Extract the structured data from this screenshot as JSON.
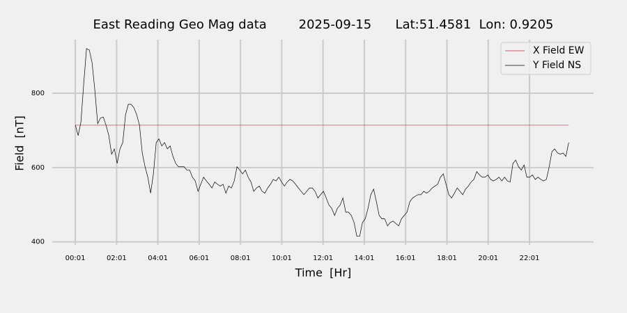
{
  "chart_data": {
    "type": "line",
    "title": "East Reading Geo Mag data        2025-09-15      Lat:51.4581  Lon: 0.9205",
    "xlabel": "Time  [Hr]",
    "ylabel": "Field  [nT]",
    "xlim": [
      -1.1,
      25.12
    ],
    "ylim": [
      392,
      944
    ],
    "xticks": [
      {
        "value": 0.0167,
        "label": "00:01"
      },
      {
        "value": 2.0167,
        "label": "02:01"
      },
      {
        "value": 4.0167,
        "label": "04:01"
      },
      {
        "value": 6.0167,
        "label": "06:01"
      },
      {
        "value": 8.0167,
        "label": "08:01"
      },
      {
        "value": 10.0167,
        "label": "10:01"
      },
      {
        "value": 12.0167,
        "label": "12:01"
      },
      {
        "value": 14.0167,
        "label": "14:01"
      },
      {
        "value": 16.0167,
        "label": "16:01"
      },
      {
        "value": 18.0167,
        "label": "18:01"
      },
      {
        "value": 20.0167,
        "label": "20:01"
      },
      {
        "value": 22.0167,
        "label": "22:01"
      }
    ],
    "yticks": [
      400,
      600,
      800
    ],
    "grid": true,
    "legend": "upper right",
    "series": [
      {
        "name": "X Field EW",
        "color": "#d62728",
        "x": [
          0.02,
          23.915
        ],
        "values": [
          714,
          714
        ]
      },
      {
        "name": "Y Field NS",
        "color": "#000000",
        "x": [
          0.02,
          0.155,
          0.29,
          0.425,
          0.56,
          0.695,
          0.83,
          0.965,
          1.1,
          1.235,
          1.37,
          1.505,
          1.64,
          1.775,
          1.91,
          2.045,
          2.18,
          2.315,
          2.45,
          2.585,
          2.72,
          2.855,
          2.99,
          3.125,
          3.26,
          3.395,
          3.53,
          3.665,
          3.8,
          3.935,
          4.07,
          4.205,
          4.34,
          4.475,
          4.61,
          4.745,
          4.88,
          5.015,
          5.15,
          5.285,
          5.42,
          5.555,
          5.69,
          5.825,
          5.96,
          6.095,
          6.23,
          6.365,
          6.5,
          6.635,
          6.77,
          6.905,
          7.04,
          7.175,
          7.31,
          7.445,
          7.58,
          7.715,
          7.85,
          7.985,
          8.12,
          8.255,
          8.39,
          8.525,
          8.66,
          8.795,
          8.93,
          9.065,
          9.2,
          9.335,
          9.47,
          9.605,
          9.74,
          9.875,
          10.01,
          10.145,
          10.28,
          10.415,
          10.55,
          10.685,
          10.82,
          10.955,
          11.09,
          11.225,
          11.36,
          11.495,
          11.63,
          11.765,
          11.9,
          12.035,
          12.17,
          12.305,
          12.44,
          12.575,
          12.71,
          12.845,
          12.98,
          13.115,
          13.25,
          13.385,
          13.52,
          13.655,
          13.79,
          13.925,
          14.06,
          14.195,
          14.33,
          14.465,
          14.6,
          14.735,
          14.87,
          15.005,
          15.14,
          15.275,
          15.41,
          15.545,
          15.68,
          15.815,
          15.95,
          16.085,
          16.22,
          16.355,
          16.49,
          16.625,
          16.76,
          16.895,
          17.03,
          17.165,
          17.3,
          17.435,
          17.57,
          17.705,
          17.84,
          17.975,
          18.11,
          18.245,
          18.38,
          18.515,
          18.65,
          18.785,
          18.92,
          19.055,
          19.19,
          19.325,
          19.46,
          19.595,
          19.73,
          19.865,
          20.0,
          20.135,
          20.27,
          20.405,
          20.54,
          20.675,
          20.81,
          20.945,
          21.08,
          21.215,
          21.35,
          21.485,
          21.62,
          21.755,
          21.89,
          22.025,
          22.16,
          22.295,
          22.43,
          22.565,
          22.7,
          22.835,
          22.97,
          23.105,
          23.24,
          23.375,
          23.51,
          23.645,
          23.78,
          23.915
        ],
        "values": [
          714,
          686,
          723,
          826,
          920,
          916,
          882,
          807,
          718,
          733,
          736,
          714,
          686,
          636,
          650,
          611,
          650,
          667,
          742,
          770,
          770,
          761,
          742,
          714,
          639,
          602,
          574,
          531,
          583,
          667,
          677,
          658,
          667,
          650,
          658,
          630,
          611,
          602,
          602,
          602,
          593,
          593,
          574,
          564,
          536,
          555,
          574,
          564,
          555,
          545,
          561,
          555,
          550,
          555,
          531,
          550,
          545,
          564,
          602,
          593,
          583,
          593,
          574,
          561,
          536,
          545,
          550,
          536,
          531,
          545,
          555,
          568,
          564,
          574,
          561,
          550,
          561,
          568,
          564,
          555,
          545,
          536,
          527,
          536,
          545,
          545,
          536,
          518,
          527,
          536,
          518,
          499,
          490,
          471,
          490,
          499,
          518,
          480,
          480,
          471,
          452,
          415,
          415,
          452,
          462,
          490,
          527,
          542,
          508,
          471,
          462,
          462,
          443,
          452,
          456,
          449,
          443,
          462,
          471,
          480,
          508,
          518,
          523,
          527,
          527,
          536,
          531,
          536,
          545,
          550,
          555,
          574,
          583,
          555,
          527,
          518,
          531,
          545,
          536,
          527,
          542,
          550,
          561,
          568,
          589,
          580,
          574,
          574,
          580,
          568,
          564,
          568,
          574,
          564,
          574,
          564,
          561,
          611,
          620,
          602,
          593,
          607,
          574,
          574,
          580,
          568,
          574,
          568,
          564,
          568,
          602,
          643,
          650,
          639,
          636,
          639,
          630,
          667
        ]
      }
    ]
  }
}
